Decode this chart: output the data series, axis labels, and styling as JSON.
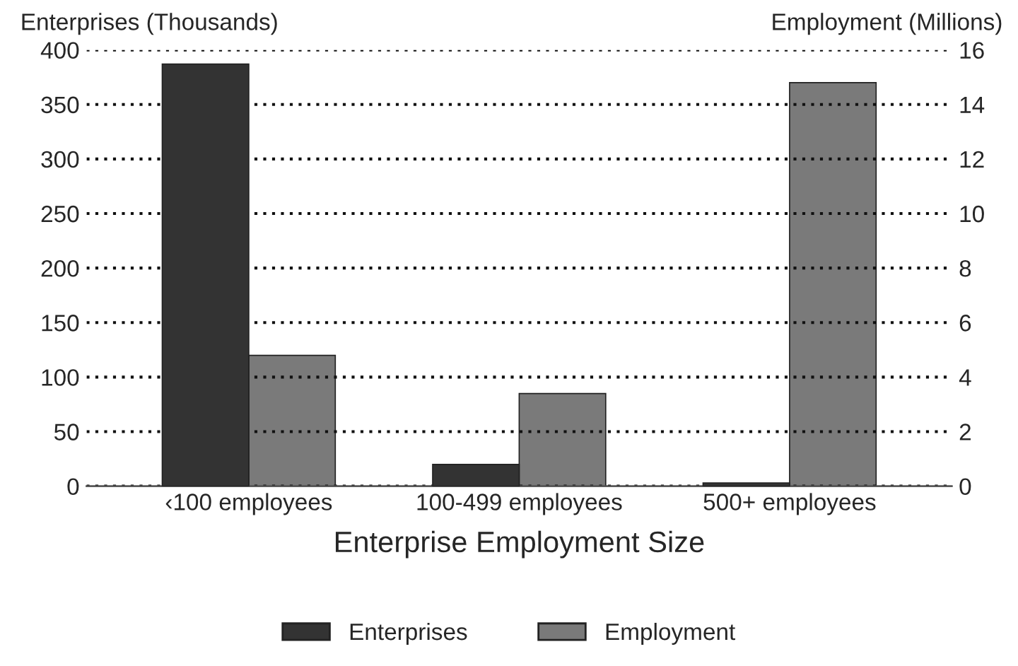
{
  "chart_data": {
    "type": "bar",
    "xlabel": "Enterprise Employment Size",
    "ylabel": "Enterprises (Thousands)",
    "y2label": "Employment (Millions)",
    "categories": [
      "‹100 employees",
      "100-499 employees",
      "500+ employees"
    ],
    "series": [
      {
        "name": "Enterprises",
        "color": "#333333",
        "values": [
          387,
          20,
          3
        ]
      },
      {
        "name": "Employment",
        "color": "#7a7a7a",
        "values": [
          4.8,
          3.4,
          14.8
        ],
        "axis": "y2"
      }
    ],
    "ylim": [
      0,
      400
    ],
    "yticks": [
      0,
      50,
      100,
      150,
      200,
      250,
      300,
      350,
      400
    ],
    "y2lim": [
      0,
      16
    ],
    "y2ticks": [
      0,
      2,
      4,
      6,
      8,
      10,
      12,
      14,
      16
    ],
    "grid": "y",
    "legend": "bottom"
  }
}
